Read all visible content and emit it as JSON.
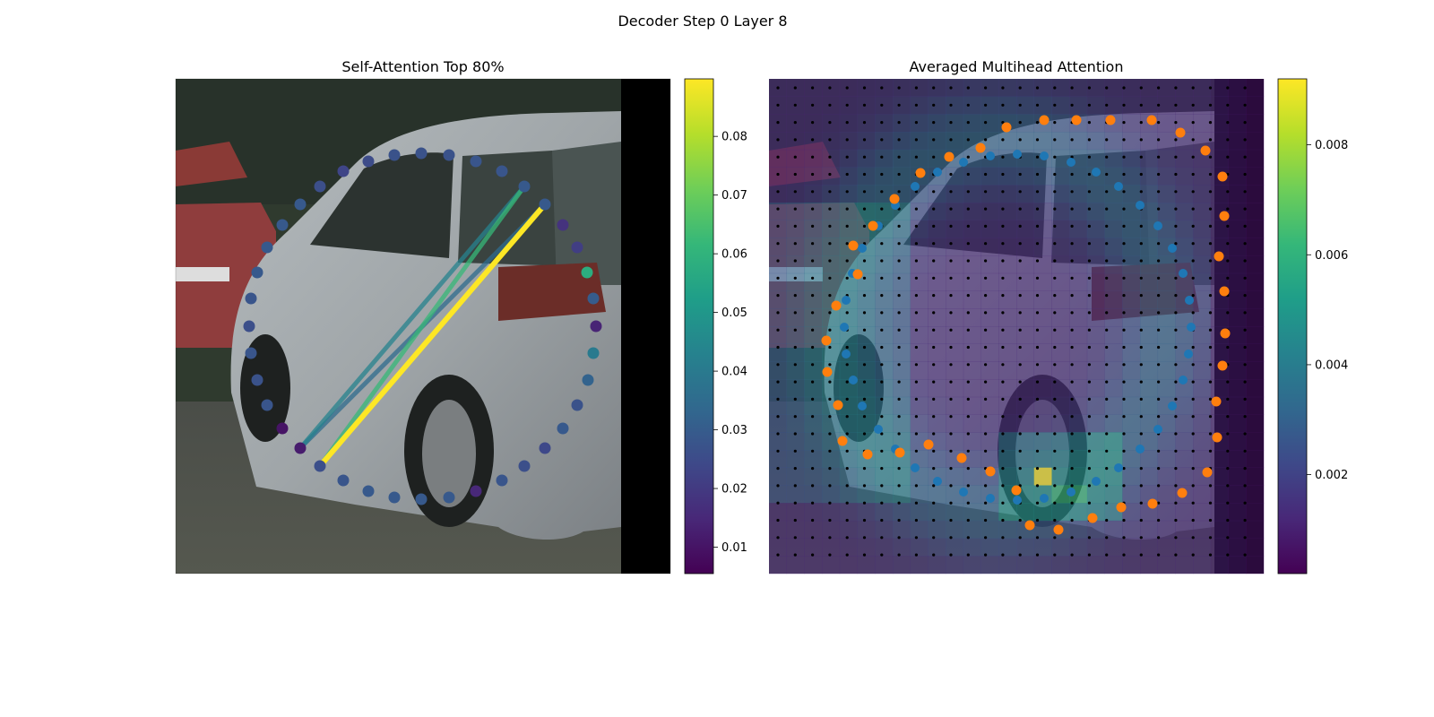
{
  "figure": {
    "suptitle": "Decoder Step 0 Layer 8"
  },
  "colors": {
    "viridis": [
      "#440154",
      "#482878",
      "#3e4989",
      "#31688e",
      "#26828e",
      "#1f9e89",
      "#35b779",
      "#6ece58",
      "#b5de2b",
      "#fde725"
    ],
    "orange_points": "#ff7f0e",
    "blue_points": "#1f77b4",
    "grid_dots": "#000000"
  },
  "chart_data": [
    {
      "type": "scatter",
      "title": "Self-Attention Top 80%",
      "background": "photo of silver car (image)",
      "xlabel": "",
      "ylabel": "",
      "colorbar": {
        "min": 0.0055,
        "max": 0.0898,
        "ticks": [
          "0.01",
          "0.02",
          "0.03",
          "0.04",
          "0.05",
          "0.06",
          "0.07",
          "0.08"
        ],
        "tick_values": [
          0.01,
          0.02,
          0.03,
          0.04,
          0.05,
          0.06,
          0.07,
          0.08
        ]
      },
      "ring_points": {
        "x": [
          440,
          470,
          501,
          531,
          560,
          585,
          608,
          628,
          644,
          655,
          662,
          665,
          662,
          656,
          644,
          628,
          608,
          585,
          560,
          531,
          501,
          470,
          440,
          411,
          383,
          357,
          335,
          315,
          298,
          287,
          280,
          278,
          280,
          287,
          298,
          315,
          335,
          357,
          383,
          411
        ],
        "y": [
          173,
          171,
          173,
          180,
          191,
          208,
          228,
          251,
          276,
          304,
          333,
          364,
          394,
          424,
          452,
          478,
          500,
          520,
          536,
          548,
          555,
          557,
          555,
          548,
          536,
          520,
          500,
          478,
          452,
          424,
          394,
          364,
          333,
          304,
          276,
          251,
          228,
          208,
          191,
          180
        ],
        "attention": [
          0.027,
          0.027,
          0.027,
          0.028,
          0.028,
          0.029,
          0.029,
          0.018,
          0.021,
          0.058,
          0.03,
          0.014,
          0.04,
          0.032,
          0.027,
          0.029,
          0.024,
          0.026,
          0.028,
          0.015,
          0.029,
          0.029,
          0.029,
          0.029,
          0.028,
          0.026,
          0.012,
          0.01,
          0.028,
          0.027,
          0.028,
          0.026,
          0.028,
          0.029,
          0.029,
          0.029,
          0.029,
          0.026,
          0.023,
          0.025
        ]
      },
      "attention_lines": [
        {
          "from": 25,
          "to": 6,
          "weight": 0.0898
        },
        {
          "from": 25,
          "to": 5,
          "weight": 0.062
        },
        {
          "from": 26,
          "to": 5,
          "weight": 0.043
        },
        {
          "from": 26,
          "to": 6,
          "weight": 0.035
        }
      ]
    },
    {
      "type": "heatmap",
      "title": "Averaged Multihead Attention",
      "background": "photo of silver car (image) with attention heatmap overlay",
      "xlabel": "",
      "ylabel": "",
      "grid": {
        "cols": 28,
        "rows": 28
      },
      "colorbar": {
        "min": 0.0002,
        "max": 0.0092,
        "ticks": [
          "0.002",
          "0.004",
          "0.006",
          "0.008"
        ],
        "tick_values": [
          0.002,
          0.004,
          0.006,
          0.008
        ]
      },
      "orange_ring": {
        "x": [
          1165,
          1201,
          1239,
          1285,
          1317,
          1345,
          1364,
          1366,
          1360,
          1366,
          1367,
          1364,
          1357,
          1358,
          1347,
          1319,
          1286,
          1251,
          1219,
          1181,
          1149,
          1134,
          1105,
          1073,
          1036,
          1004,
          968,
          940,
          935,
          923,
          922,
          933,
          957,
          952,
          974,
          998,
          1027,
          1059,
          1094,
          1123
        ],
        "y": [
          134,
          134,
          134,
          134,
          148,
          168,
          197,
          241,
          286,
          325,
          372,
          408,
          448,
          488,
          527,
          550,
          562,
          566,
          578,
          591,
          586,
          547,
          526,
          511,
          496,
          505,
          507,
          492,
          452,
          415,
          380,
          341,
          306,
          274,
          252,
          222,
          193,
          175,
          165,
          142
        ]
      },
      "blue_ring": {
        "x": [
          1135,
          1165,
          1195,
          1223,
          1248,
          1272,
          1292,
          1308,
          1320,
          1327,
          1329,
          1326,
          1320,
          1308,
          1292,
          1272,
          1248,
          1223,
          1195,
          1165,
          1135,
          1105,
          1075,
          1046,
          1021,
          999,
          980,
          962,
          952,
          944,
          942,
          944,
          951,
          962,
          980,
          999,
          1021,
          1046,
          1075,
          1105
        ],
        "y": [
          172,
          174,
          181,
          192,
          208,
          229,
          252,
          277,
          305,
          335,
          365,
          395,
          424,
          453,
          479,
          501,
          522,
          537,
          549,
          556,
          558,
          556,
          549,
          537,
          522,
          501,
          479,
          453,
          424,
          395,
          365,
          335,
          305,
          277,
          252,
          229,
          208,
          192,
          181,
          174
        ]
      }
    }
  ]
}
